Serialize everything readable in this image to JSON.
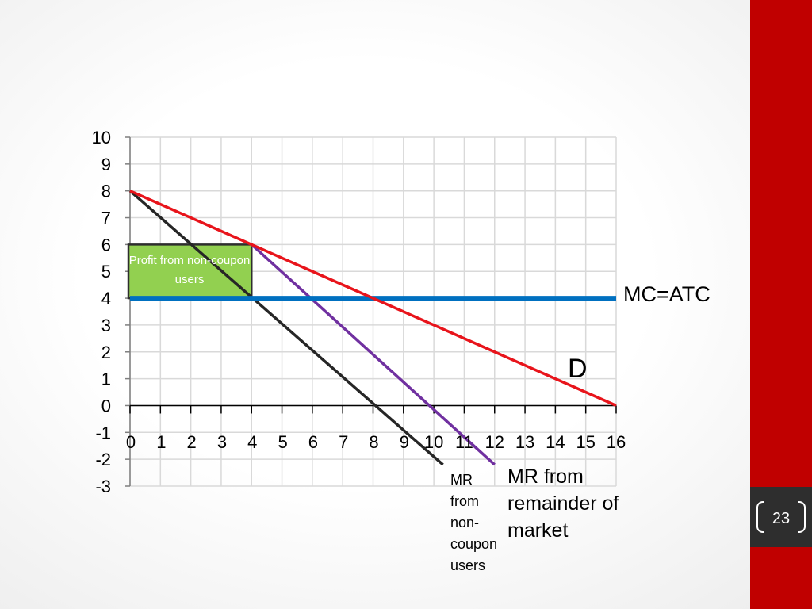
{
  "chart_data": {
    "type": "line",
    "title": "",
    "xlabel": "",
    "ylabel": "",
    "xlim": [
      0,
      16
    ],
    "ylim": [
      -3,
      10
    ],
    "grid": true,
    "x_ticks": [
      0,
      1,
      2,
      3,
      4,
      5,
      6,
      7,
      8,
      9,
      10,
      11,
      12,
      13,
      14,
      15,
      16
    ],
    "x_tick_labels": [
      "0",
      "1",
      "2",
      "3",
      "4",
      "5",
      "6",
      "7",
      "8",
      "9",
      "10",
      "11",
      "12",
      "13",
      "14",
      "15",
      "16"
    ],
    "y_ticks": [
      10,
      9,
      8,
      7,
      6,
      5,
      4,
      3,
      2,
      1,
      0,
      -1,
      -2,
      -3
    ],
    "y_tick_labels": [
      "10",
      "9",
      "8",
      "7",
      "6",
      "5",
      "4",
      "3",
      "2",
      "1",
      "0",
      "-1",
      "-2",
      "-3"
    ],
    "series": [
      {
        "name": "D",
        "color": "#e8141b",
        "points": [
          [
            0,
            8
          ],
          [
            16,
            0
          ]
        ]
      },
      {
        "name": "MC=ATC",
        "color": "#0070c0",
        "points": [
          [
            0,
            4
          ],
          [
            16,
            4
          ]
        ]
      },
      {
        "name": "MR from non-coupon users",
        "color": "#262626",
        "points": [
          [
            0,
            8
          ],
          [
            10.3,
            -2.2
          ]
        ]
      },
      {
        "name": "MR from remainder of market",
        "color": "#7030a0",
        "points": [
          [
            4,
            6
          ],
          [
            12,
            -2.2
          ]
        ]
      }
    ],
    "annotations": {
      "profit_box": {
        "label": "Profit from non-coupon users",
        "x_range": [
          0,
          4
        ],
        "y_range": [
          4,
          6
        ],
        "color": "#92d050"
      },
      "mc_label": "MC=ATC",
      "d_label": "D",
      "mr_noncoupon_label": [
        "MR",
        "from",
        "non-",
        "coupon",
        "users"
      ],
      "mr_remainder_label": [
        "MR from",
        "remainder of",
        "market"
      ]
    }
  },
  "slide": {
    "number": "23",
    "accent_color": "#c00000",
    "number_box_color": "#2e2e2e"
  }
}
